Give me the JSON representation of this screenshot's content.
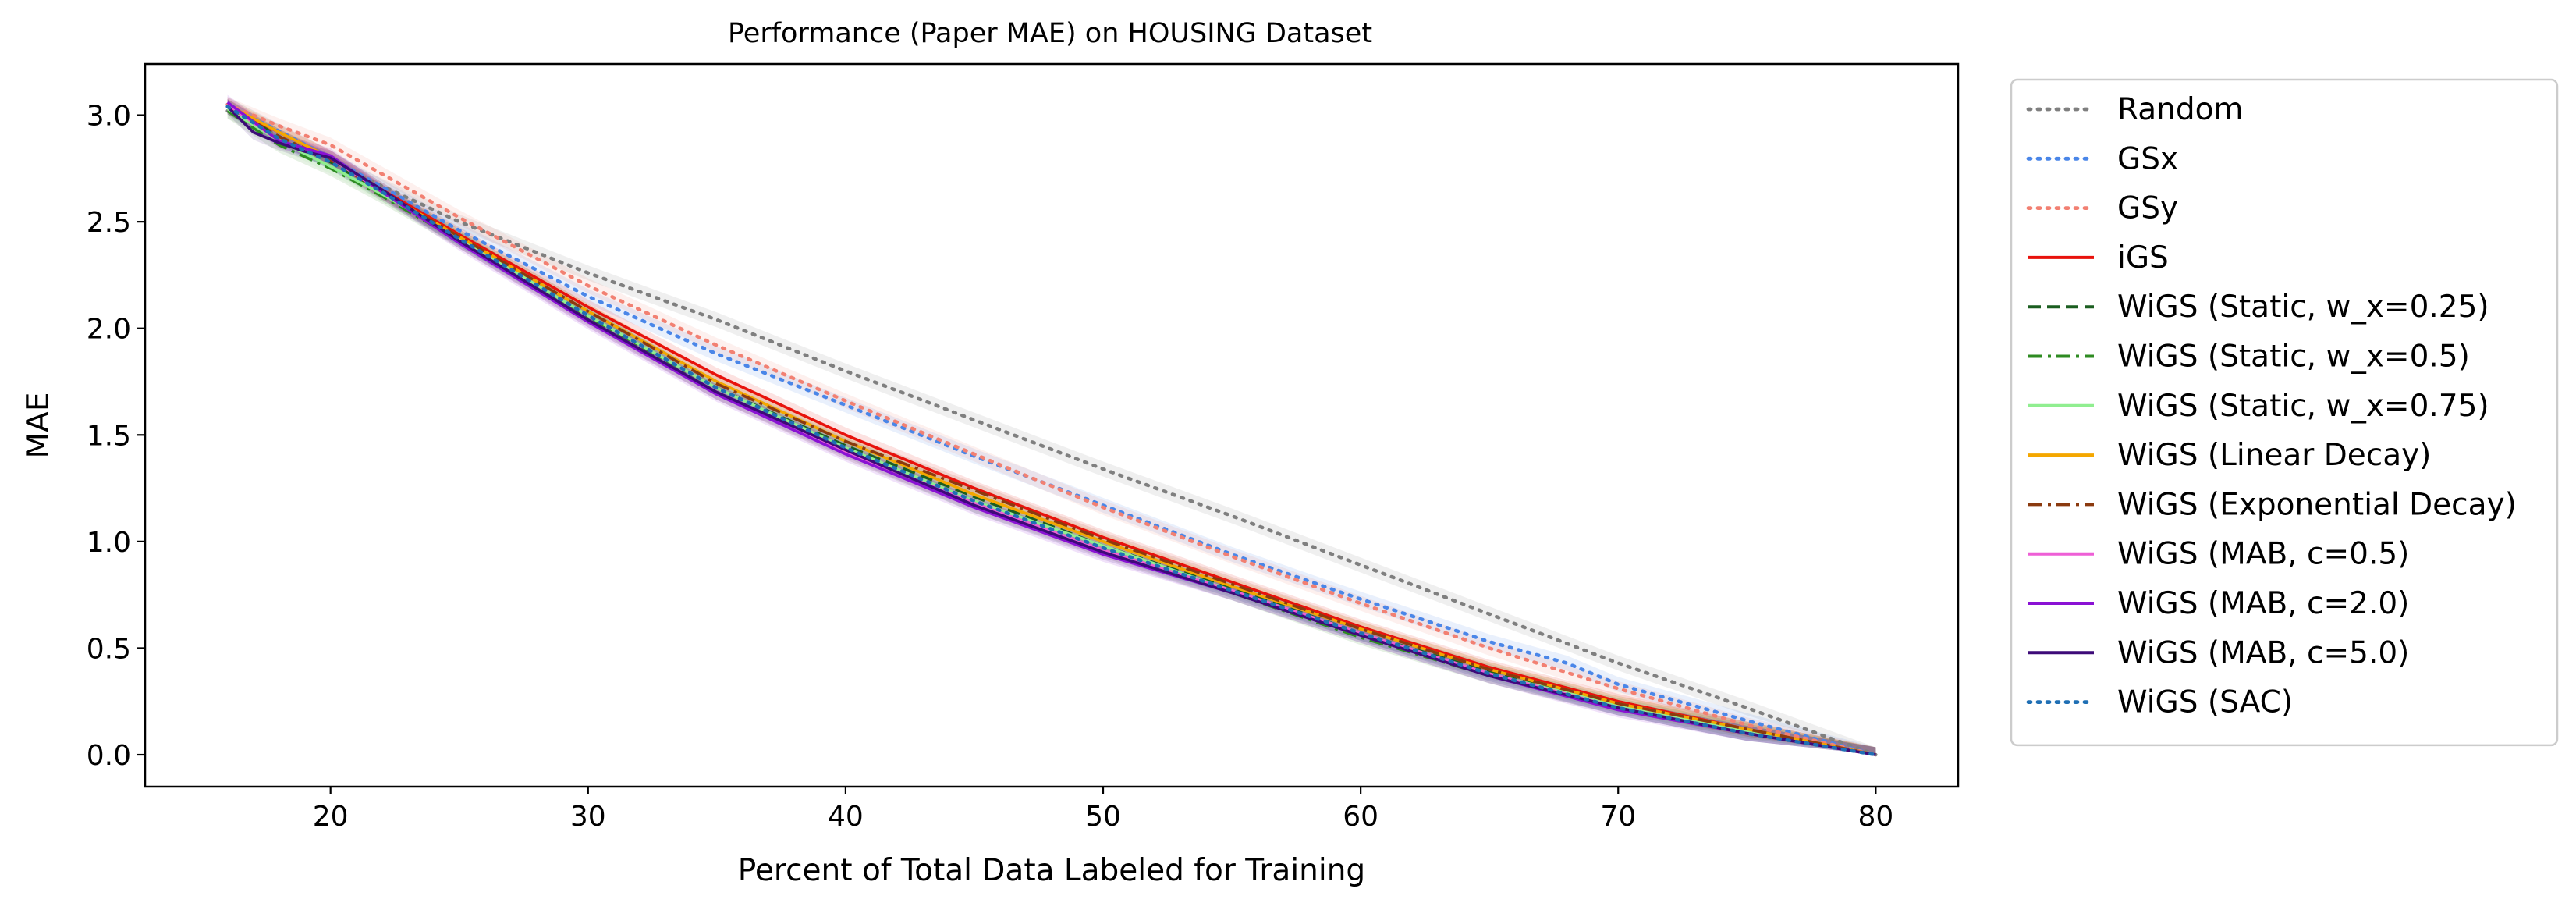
{
  "chart_data": {
    "type": "line",
    "title": "Performance (Paper MAE) on HOUSING Dataset",
    "xlabel": "Percent of Total Data Labeled for Training",
    "ylabel": "MAE",
    "xlim": [
      12.8,
      83.2
    ],
    "ylim": [
      -0.15,
      3.24
    ],
    "xticks": [
      20,
      30,
      40,
      50,
      60,
      70,
      80
    ],
    "xtick_labels": [
      "20",
      "30",
      "40",
      "50",
      "60",
      "70",
      "80"
    ],
    "yticks": [
      0.0,
      0.5,
      1.0,
      1.5,
      2.0,
      2.5,
      3.0
    ],
    "ytick_labels": [
      "0.0",
      "0.5",
      "1.0",
      "1.5",
      "2.0",
      "2.5",
      "3.0"
    ],
    "grid": false,
    "legend_position": "outside-right",
    "series": [
      {
        "name": "Random",
        "color": "#7f7f7f",
        "dash": "dotted",
        "x": [
          16,
          20,
          25,
          30,
          35,
          40,
          45,
          50,
          55,
          60,
          65,
          70,
          75,
          80
        ],
        "y": [
          3.02,
          2.78,
          2.5,
          2.26,
          2.04,
          1.8,
          1.57,
          1.34,
          1.12,
          0.89,
          0.66,
          0.43,
          0.22,
          0.0
        ]
      },
      {
        "name": "GSx",
        "color": "#4a86e8",
        "dash": "dotted",
        "x": [
          16,
          20,
          25,
          30,
          35,
          40,
          45,
          50,
          55,
          60,
          65,
          68,
          70,
          75,
          80
        ],
        "y": [
          3.05,
          2.8,
          2.46,
          2.15,
          1.88,
          1.64,
          1.4,
          1.17,
          0.94,
          0.73,
          0.53,
          0.43,
          0.33,
          0.16,
          0.0
        ]
      },
      {
        "name": "GSy",
        "color": "#f28072",
        "dash": "dotted",
        "x": [
          16,
          18,
          20,
          25,
          30,
          35,
          40,
          45,
          50,
          55,
          60,
          65,
          70,
          75,
          80
        ],
        "y": [
          3.05,
          2.95,
          2.86,
          2.52,
          2.2,
          1.92,
          1.66,
          1.41,
          1.16,
          0.93,
          0.71,
          0.5,
          0.31,
          0.14,
          0.0
        ]
      },
      {
        "name": "iGS",
        "color": "#e8120c",
        "dash": "solid",
        "x": [
          16,
          18,
          20,
          22,
          25,
          30,
          35,
          40,
          45,
          50,
          55,
          60,
          65,
          70,
          75,
          80
        ],
        "y": [
          3.04,
          2.92,
          2.8,
          2.65,
          2.44,
          2.1,
          1.78,
          1.5,
          1.25,
          1.02,
          0.81,
          0.6,
          0.41,
          0.25,
          0.12,
          0.0
        ]
      },
      {
        "name": "WiGS (Static, w_x=0.25)",
        "color": "#1b5e20",
        "dash": "dashed",
        "x": [
          16,
          18,
          20,
          22,
          25,
          30,
          35,
          40,
          45,
          50,
          55,
          60,
          65,
          70,
          75,
          80
        ],
        "y": [
          3.04,
          2.9,
          2.78,
          2.63,
          2.42,
          2.06,
          1.72,
          1.45,
          1.21,
          0.98,
          0.78,
          0.57,
          0.39,
          0.23,
          0.11,
          0.0
        ]
      },
      {
        "name": "WiGS (Static, w_x=0.5)",
        "color": "#2e8b22",
        "dash": "dashdot",
        "x": [
          16,
          18,
          20,
          22,
          25,
          30,
          35,
          40,
          45,
          50,
          55,
          60,
          65,
          70,
          75,
          80
        ],
        "y": [
          3.02,
          2.86,
          2.75,
          2.62,
          2.41,
          2.05,
          1.7,
          1.42,
          1.17,
          0.96,
          0.76,
          0.55,
          0.37,
          0.22,
          0.1,
          0.0
        ]
      },
      {
        "name": "WiGS (Static, w_x=0.75)",
        "color": "#90ee90",
        "dash": "solid",
        "x": [
          16,
          18,
          20,
          22,
          25,
          30,
          35,
          40,
          45,
          50,
          55,
          60,
          65,
          70,
          75,
          80
        ],
        "y": [
          3.03,
          2.88,
          2.76,
          2.63,
          2.42,
          2.06,
          1.72,
          1.44,
          1.19,
          0.98,
          0.77,
          0.57,
          0.38,
          0.23,
          0.11,
          0.0
        ]
      },
      {
        "name": "WiGS (Linear Decay)",
        "color": "#f4a700",
        "dash": "solid",
        "x": [
          16,
          18,
          20,
          22,
          25,
          30,
          35,
          40,
          45,
          50,
          55,
          60,
          65,
          70,
          75,
          80
        ],
        "y": [
          3.05,
          2.92,
          2.8,
          2.64,
          2.43,
          2.08,
          1.75,
          1.47,
          1.22,
          1.0,
          0.79,
          0.59,
          0.4,
          0.24,
          0.12,
          0.0
        ]
      },
      {
        "name": "WiGS (Exponential Decay)",
        "color": "#8b3a0f",
        "dash": "dashdot",
        "x": [
          16,
          18,
          20,
          22,
          25,
          30,
          35,
          40,
          45,
          50,
          55,
          60,
          65,
          70,
          75,
          80
        ],
        "y": [
          3.04,
          2.9,
          2.79,
          2.64,
          2.43,
          2.08,
          1.74,
          1.47,
          1.24,
          1.01,
          0.8,
          0.59,
          0.4,
          0.24,
          0.12,
          0.0
        ]
      },
      {
        "name": "WiGS (MAB, c=0.5)",
        "color": "#ee5fd6",
        "dash": "solid",
        "x": [
          16,
          18,
          20,
          22,
          25,
          30,
          35,
          40,
          45,
          50,
          55,
          60,
          65,
          70,
          75,
          80
        ],
        "y": [
          3.05,
          2.88,
          2.8,
          2.64,
          2.41,
          2.04,
          1.7,
          1.42,
          1.18,
          0.96,
          0.77,
          0.57,
          0.38,
          0.22,
          0.1,
          0.0
        ]
      },
      {
        "name": "WiGS (MAB, c=2.0)",
        "color": "#8a12d4",
        "dash": "solid",
        "x": [
          16,
          18,
          20,
          22,
          25,
          30,
          35,
          40,
          45,
          50,
          55,
          60,
          65,
          70,
          75,
          80
        ],
        "y": [
          3.06,
          2.88,
          2.81,
          2.64,
          2.4,
          2.03,
          1.69,
          1.41,
          1.16,
          0.94,
          0.76,
          0.56,
          0.37,
          0.21,
          0.1,
          0.0
        ]
      },
      {
        "name": "WiGS (MAB, c=5.0)",
        "color": "#3d0a78",
        "dash": "solid",
        "x": [
          16,
          17,
          18,
          19,
          20,
          22,
          25,
          30,
          35,
          40,
          45,
          50,
          55,
          60,
          65,
          70,
          75,
          80
        ],
        "y": [
          3.04,
          2.92,
          2.87,
          2.83,
          2.8,
          2.65,
          2.41,
          2.04,
          1.7,
          1.43,
          1.17,
          0.95,
          0.76,
          0.56,
          0.37,
          0.22,
          0.1,
          0.0
        ]
      },
      {
        "name": "WiGS (SAC)",
        "color": "#1f6fb4",
        "dash": "dotted",
        "x": [
          16,
          18,
          20,
          22,
          25,
          30,
          35,
          40,
          45,
          50,
          55,
          60,
          65,
          70,
          75,
          80
        ],
        "y": [
          3.04,
          2.89,
          2.78,
          2.64,
          2.42,
          2.06,
          1.72,
          1.44,
          1.19,
          0.97,
          0.77,
          0.57,
          0.38,
          0.22,
          0.1,
          0.0
        ]
      }
    ]
  }
}
